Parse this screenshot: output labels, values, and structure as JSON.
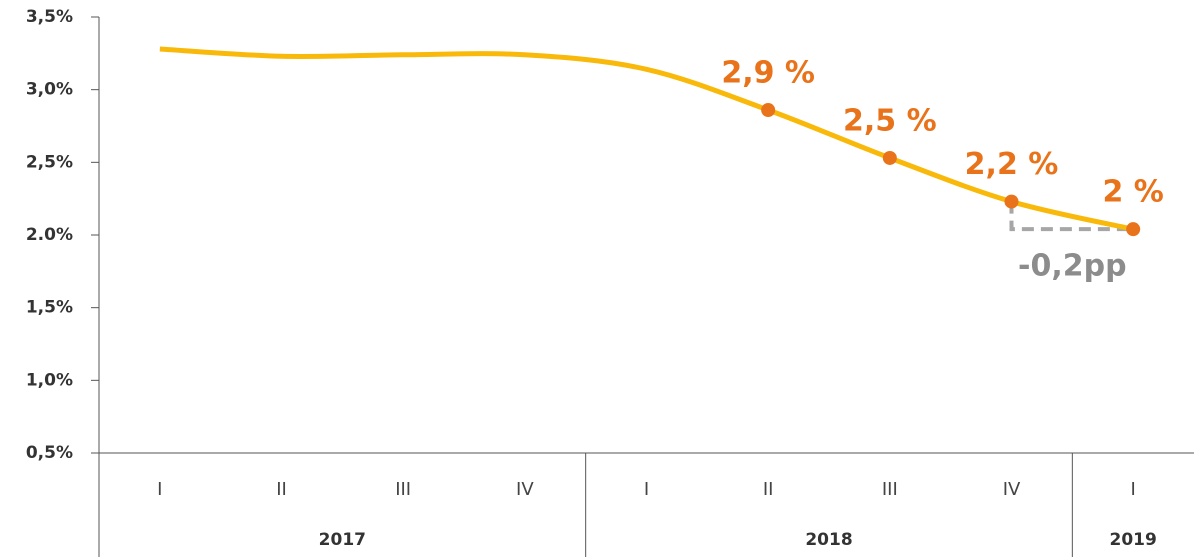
{
  "chart_data": {
    "type": "line",
    "categories": [
      "I",
      "II",
      "III",
      "IV",
      "I",
      "II",
      "III",
      "IV",
      "I"
    ],
    "groups": [
      {
        "label": "2017",
        "span": 4
      },
      {
        "label": "2018",
        "span": 4
      },
      {
        "label": "2019",
        "span": 1
      }
    ],
    "series": [
      {
        "name": null,
        "color": "#f9b90b",
        "marker_color": "#e8731a",
        "values": [
          3.28,
          3.23,
          3.24,
          3.24,
          3.14,
          2.86,
          2.53,
          2.23,
          2.04
        ],
        "value_labels": [
          null,
          null,
          null,
          null,
          null,
          "2,9 %",
          "2,5 %",
          "2,2 %",
          "2 %"
        ]
      }
    ],
    "ylim": [
      0.5,
      3.5
    ],
    "yticks": [
      {
        "value": 0.5,
        "label": "0,5%"
      },
      {
        "value": 1.0,
        "label": "1,0%"
      },
      {
        "value": 1.5,
        "label": "1,5%"
      },
      {
        "value": 2.0,
        "label": "2.0%"
      },
      {
        "value": 2.5,
        "label": "2,5%"
      },
      {
        "value": 3.0,
        "label": "3,0%"
      },
      {
        "value": 3.5,
        "label": "3,5%"
      }
    ],
    "annotation": {
      "text": "-0,2pp",
      "from": 7,
      "to": 8
    }
  }
}
